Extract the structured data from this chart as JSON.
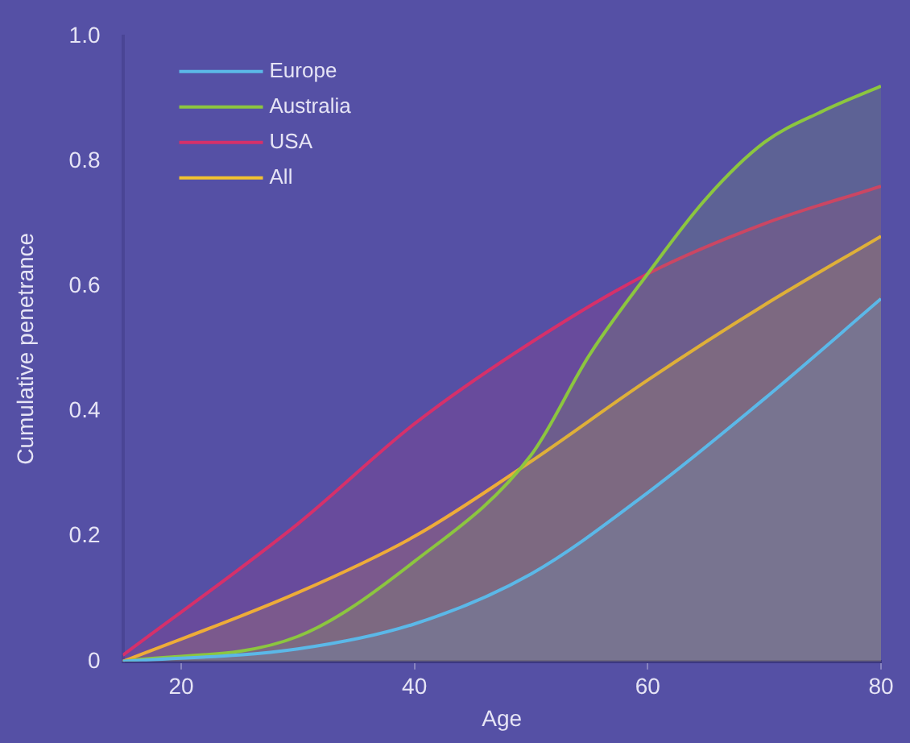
{
  "chart_data": {
    "type": "area",
    "xlabel": "Age",
    "ylabel": "Cumulative penetrance",
    "xlim": [
      15,
      80
    ],
    "xticks": [
      20,
      40,
      60,
      80
    ],
    "ylim": [
      0,
      1
    ],
    "yticks": [
      {
        "value": 0,
        "label": "0"
      },
      0.2,
      0.4,
      0.6,
      0.8,
      {
        "value": 1,
        "label": "1.0"
      }
    ],
    "grid": false,
    "legend": "top left",
    "marker": "none",
    "line_style": "solid",
    "series": [
      {
        "name": "Europe",
        "color": "#5bb8e8",
        "x": [
          15,
          30,
          40,
          50,
          60,
          70,
          80
        ],
        "values": [
          0,
          0.02,
          0.06,
          0.14,
          0.27,
          0.42,
          0.58
        ]
      },
      {
        "name": "Australia",
        "color": "#8cc63f",
        "x": [
          15,
          30,
          40,
          50,
          55,
          60,
          65,
          70,
          75,
          80
        ],
        "values": [
          0,
          0.04,
          0.16,
          0.33,
          0.49,
          0.62,
          0.74,
          0.83,
          0.88,
          0.92
        ]
      },
      {
        "name": "USA",
        "color": "#d6306a",
        "x": [
          15,
          30,
          40,
          50,
          60,
          70,
          80
        ],
        "values": [
          0.01,
          0.22,
          0.38,
          0.51,
          0.62,
          0.7,
          0.76
        ]
      },
      {
        "name": "All",
        "color": "#f2c230",
        "x": [
          15,
          30,
          40,
          50,
          60,
          70,
          80
        ],
        "values": [
          0,
          0.11,
          0.2,
          0.32,
          0.45,
          0.57,
          0.68
        ]
      }
    ]
  }
}
